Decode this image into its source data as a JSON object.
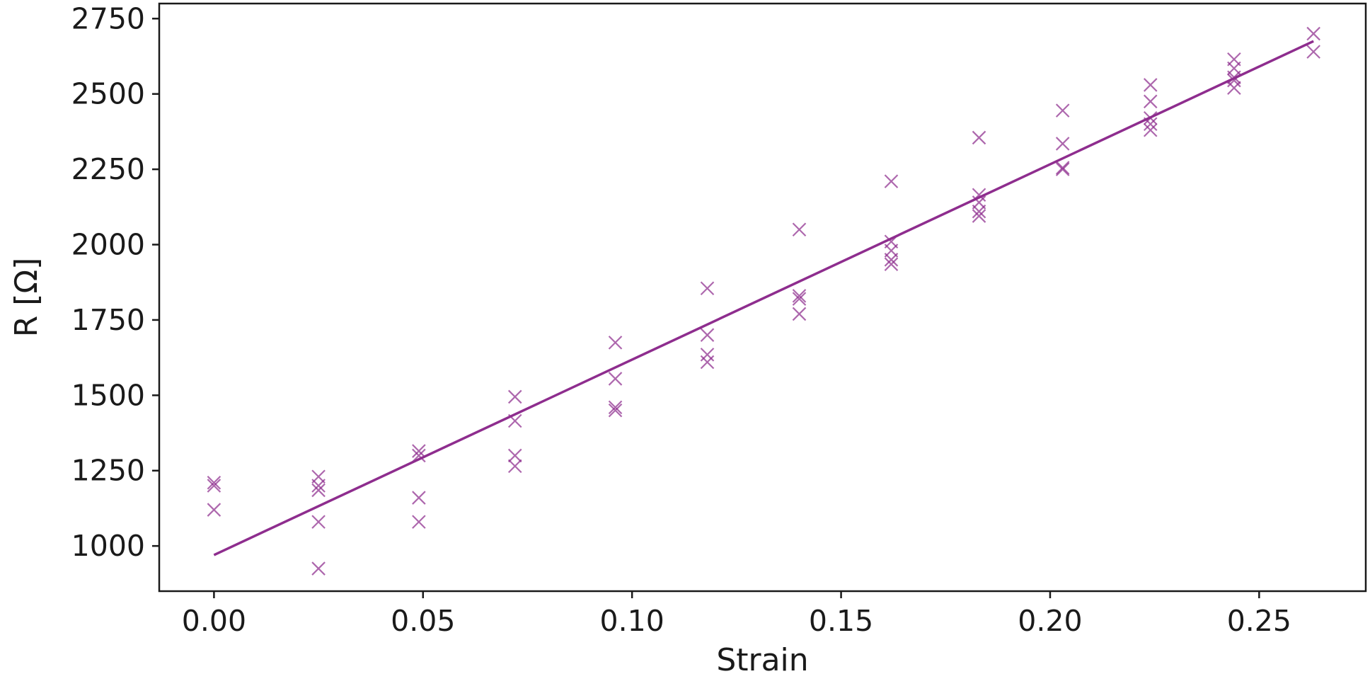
{
  "chart_data": {
    "type": "scatter",
    "title": "",
    "xlabel": "Strain",
    "ylabel": "R [Ω]",
    "xlim": [
      -0.0131,
      0.2755
    ],
    "ylim": [
      850,
      2800
    ],
    "xticks": [
      0.0,
      0.05,
      0.1,
      0.15,
      0.2,
      0.25
    ],
    "xtick_labels": [
      "0.00",
      "0.05",
      "0.10",
      "0.15",
      "0.20",
      "0.25"
    ],
    "yticks": [
      1000,
      1250,
      1500,
      1750,
      2000,
      2250,
      2500,
      2750
    ],
    "ytick_labels": [
      "1000",
      "1250",
      "1500",
      "1750",
      "2000",
      "2250",
      "2500",
      "2750"
    ],
    "grid": false,
    "legend": "none",
    "color": "#8e2d8e",
    "series": [
      {
        "kind": "scatter",
        "marker": "x",
        "points": [
          {
            "x": 0.0,
            "y": 1210
          },
          {
            "x": 0.0,
            "y": 1200
          },
          {
            "x": 0.0,
            "y": 1120
          },
          {
            "x": 0.025,
            "y": 1230
          },
          {
            "x": 0.025,
            "y": 1200
          },
          {
            "x": 0.025,
            "y": 1185
          },
          {
            "x": 0.025,
            "y": 1080
          },
          {
            "x": 0.025,
            "y": 925
          },
          {
            "x": 0.049,
            "y": 1315
          },
          {
            "x": 0.049,
            "y": 1300
          },
          {
            "x": 0.049,
            "y": 1160
          },
          {
            "x": 0.049,
            "y": 1080
          },
          {
            "x": 0.072,
            "y": 1495
          },
          {
            "x": 0.072,
            "y": 1415
          },
          {
            "x": 0.072,
            "y": 1300
          },
          {
            "x": 0.072,
            "y": 1265
          },
          {
            "x": 0.096,
            "y": 1675
          },
          {
            "x": 0.096,
            "y": 1555
          },
          {
            "x": 0.096,
            "y": 1460
          },
          {
            "x": 0.096,
            "y": 1450
          },
          {
            "x": 0.118,
            "y": 1855
          },
          {
            "x": 0.118,
            "y": 1700
          },
          {
            "x": 0.118,
            "y": 1635
          },
          {
            "x": 0.118,
            "y": 1610
          },
          {
            "x": 0.14,
            "y": 2050
          },
          {
            "x": 0.14,
            "y": 1830
          },
          {
            "x": 0.14,
            "y": 1820
          },
          {
            "x": 0.14,
            "y": 1770
          },
          {
            "x": 0.162,
            "y": 2210
          },
          {
            "x": 0.162,
            "y": 2010
          },
          {
            "x": 0.162,
            "y": 1980
          },
          {
            "x": 0.162,
            "y": 1950
          },
          {
            "x": 0.162,
            "y": 1935
          },
          {
            "x": 0.183,
            "y": 2355
          },
          {
            "x": 0.183,
            "y": 2165
          },
          {
            "x": 0.183,
            "y": 2140
          },
          {
            "x": 0.183,
            "y": 2110
          },
          {
            "x": 0.183,
            "y": 2095
          },
          {
            "x": 0.203,
            "y": 2445
          },
          {
            "x": 0.203,
            "y": 2335
          },
          {
            "x": 0.203,
            "y": 2255
          },
          {
            "x": 0.203,
            "y": 2250
          },
          {
            "x": 0.224,
            "y": 2530
          },
          {
            "x": 0.224,
            "y": 2475
          },
          {
            "x": 0.224,
            "y": 2420
          },
          {
            "x": 0.224,
            "y": 2400
          },
          {
            "x": 0.224,
            "y": 2380
          },
          {
            "x": 0.244,
            "y": 2615
          },
          {
            "x": 0.244,
            "y": 2585
          },
          {
            "x": 0.244,
            "y": 2555
          },
          {
            "x": 0.244,
            "y": 2545
          },
          {
            "x": 0.244,
            "y": 2520
          },
          {
            "x": 0.263,
            "y": 2700
          },
          {
            "x": 0.263,
            "y": 2640
          }
        ]
      },
      {
        "kind": "line",
        "points": [
          {
            "x": 0.0,
            "y": 970
          },
          {
            "x": 0.263,
            "y": 2675
          }
        ]
      }
    ]
  }
}
